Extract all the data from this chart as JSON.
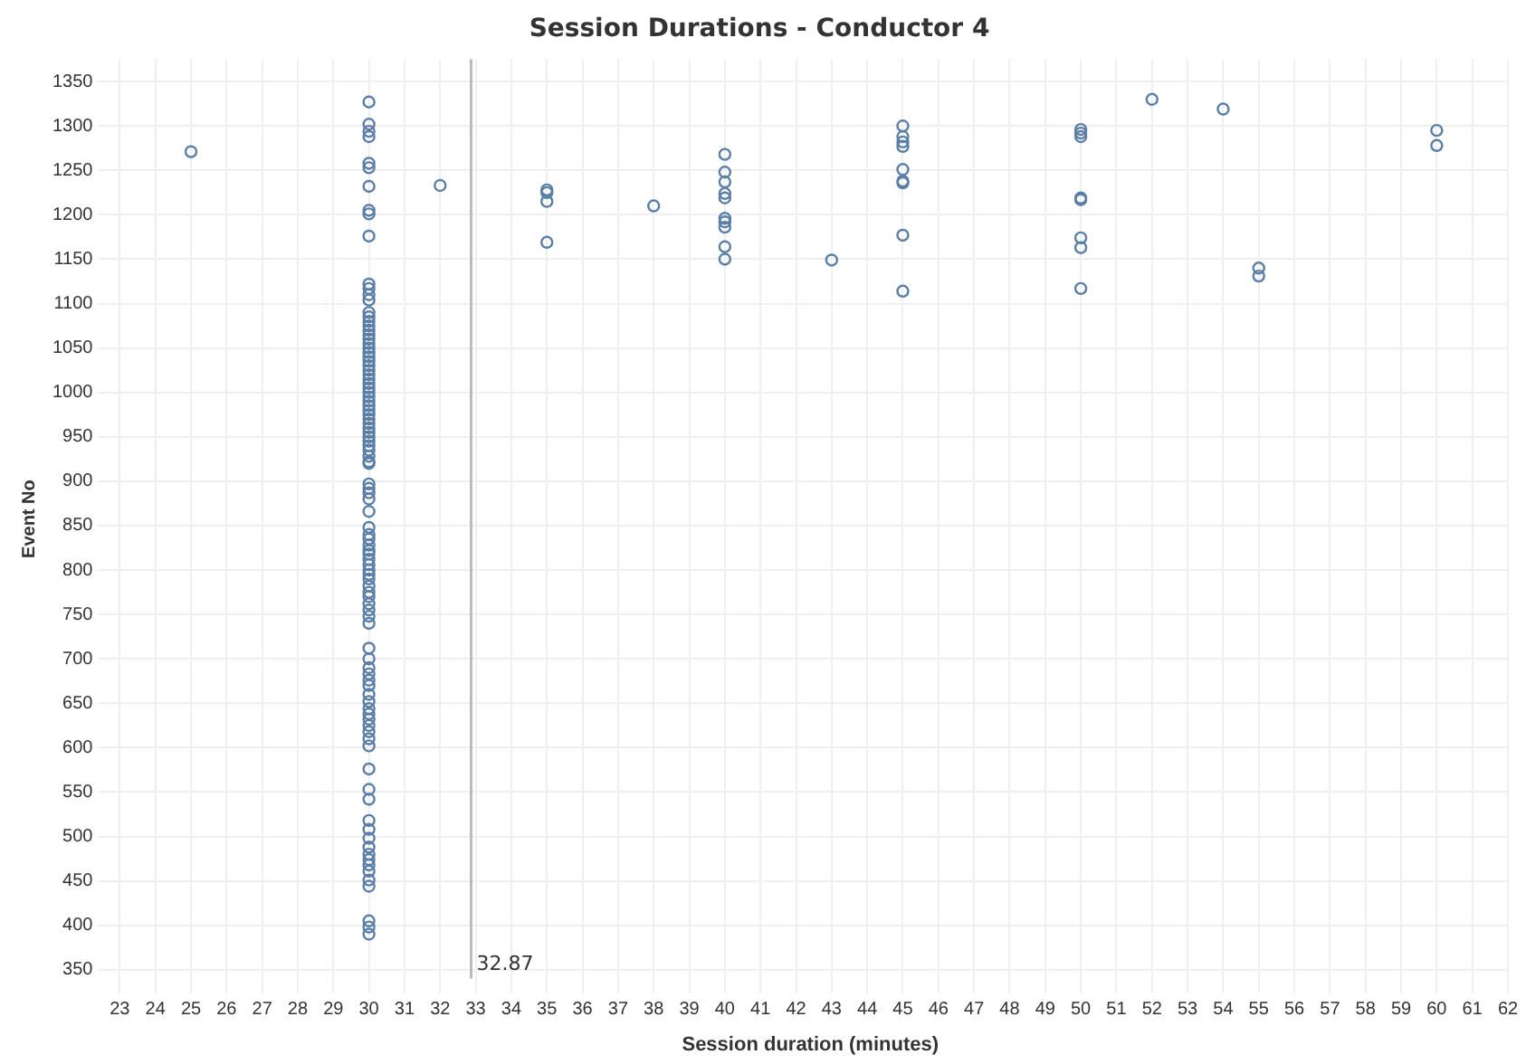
{
  "chart_data": {
    "type": "scatter",
    "title": "Session Durations - Conductor 4",
    "xlabel": "Session duration (minutes)",
    "ylabel": "Event No",
    "series": [
      {
        "color": "#5b7fa6",
        "x": [
          25,
          30,
          30,
          30,
          30,
          30,
          30,
          30,
          30,
          30,
          30,
          32,
          35,
          35,
          35,
          35,
          38,
          40,
          40,
          40,
          40,
          40,
          40,
          40,
          40,
          40,
          40,
          43,
          45,
          45,
          45,
          45,
          45,
          45,
          45,
          45,
          45,
          50,
          50,
          50,
          50,
          50,
          50,
          50,
          50,
          52,
          54,
          55,
          55,
          60,
          60,
          30,
          30,
          30,
          30,
          30,
          30,
          30,
          30,
          30,
          30,
          30,
          30,
          30,
          30,
          30,
          30,
          30,
          30,
          30,
          30,
          30,
          30,
          30,
          30,
          30,
          30,
          30,
          30,
          30,
          30,
          30,
          30,
          30,
          30,
          30,
          30,
          30,
          30,
          30,
          30,
          30,
          30,
          30,
          30,
          30,
          30,
          30,
          30,
          30,
          30,
          30,
          30,
          30,
          30,
          30,
          30,
          30,
          30,
          30,
          30,
          30,
          30,
          30,
          30,
          30,
          30,
          30,
          30,
          30,
          30,
          30,
          30,
          30,
          30,
          30,
          30,
          30,
          30,
          30,
          30,
          30,
          30,
          30,
          30,
          30,
          30,
          30,
          30,
          30,
          30,
          30,
          30,
          30
        ],
        "values": [
          1271,
          1327,
          1302,
          1294,
          1288,
          1258,
          1253,
          1232,
          1205,
          1201,
          1176,
          1233,
          1228,
          1225,
          1215,
          1169,
          1210,
          1268,
          1248,
          1237,
          1224,
          1219,
          1196,
          1192,
          1186,
          1164,
          1150,
          1149,
          1300,
          1288,
          1282,
          1277,
          1251,
          1236,
          1238,
          1177,
          1114,
          1296,
          1292,
          1288,
          1219,
          1217,
          1174,
          1163,
          1117,
          1330,
          1319,
          1140,
          1131,
          1295,
          1278,
          1122,
          1117,
          1110,
          1104,
          1090,
          1085,
          1080,
          1075,
          1070,
          1065,
          1060,
          1055,
          1050,
          1045,
          1040,
          1035,
          1030,
          1025,
          1020,
          1015,
          1010,
          1005,
          1000,
          995,
          990,
          985,
          980,
          975,
          970,
          965,
          960,
          955,
          950,
          945,
          940,
          935,
          928,
          922,
          920,
          897,
          892,
          887,
          880,
          866,
          848,
          840,
          835,
          828,
          822,
          818,
          812,
          806,
          800,
          795,
          790,
          782,
          775,
          770,
          762,
          755,
          748,
          740,
          712,
          700,
          690,
          683,
          676,
          670,
          660,
          652,
          644,
          638,
          632,
          625,
          618,
          610,
          602,
          576,
          553,
          542,
          518,
          508,
          498,
          488,
          480,
          474,
          468,
          461,
          451,
          444,
          405,
          398,
          390
        ]
      }
    ],
    "xlim": [
      22.8,
      62
    ],
    "xticks": [
      23,
      24,
      25,
      26,
      27,
      28,
      29,
      30,
      31,
      32,
      33,
      34,
      35,
      36,
      37,
      38,
      39,
      40,
      41,
      42,
      43,
      44,
      45,
      46,
      47,
      48,
      49,
      50,
      51,
      52,
      53,
      54,
      55,
      56,
      57,
      58,
      59,
      60,
      61,
      62
    ],
    "ylim": [
      340,
      1375
    ],
    "yticks": [
      350,
      400,
      450,
      500,
      550,
      600,
      650,
      700,
      750,
      800,
      850,
      900,
      950,
      1000,
      1050,
      1100,
      1150,
      1200,
      1250,
      1300,
      1350
    ],
    "ref_lines": [
      {
        "axis": "x",
        "value": 32.87,
        "label": "32.87",
        "color": "#bbbbbb"
      }
    ],
    "grid": true,
    "legend": false,
    "marker": "circle"
  }
}
